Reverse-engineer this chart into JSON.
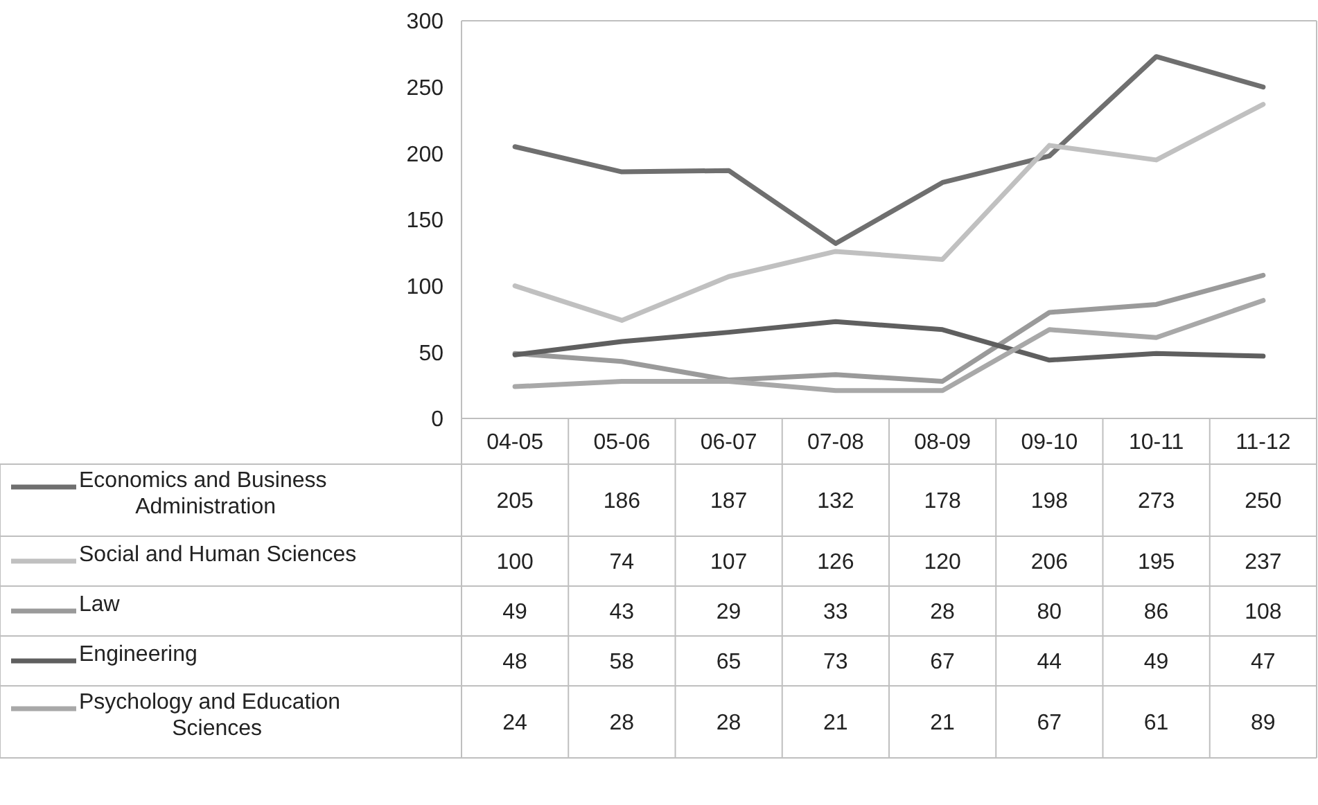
{
  "chart_data": {
    "type": "line",
    "categories": [
      "04-05",
      "05-06",
      "06-07",
      "07-08",
      "08-09",
      "09-10",
      "10-11",
      "11-12"
    ],
    "series": [
      {
        "name": "Economics and Business Administration",
        "color": "#6f6f6f",
        "values": [
          205,
          186,
          187,
          132,
          178,
          198,
          273,
          250
        ]
      },
      {
        "name": "Social and Human Sciences",
        "color": "#c0c0c0",
        "values": [
          100,
          74,
          107,
          126,
          120,
          206,
          195,
          237
        ]
      },
      {
        "name": "Law",
        "color": "#9a9a9a",
        "values": [
          49,
          43,
          29,
          33,
          28,
          80,
          86,
          108
        ]
      },
      {
        "name": "Engineering",
        "color": "#5f5f5f",
        "values": [
          48,
          58,
          65,
          73,
          67,
          44,
          49,
          47
        ]
      },
      {
        "name": "Psychology and Education Sciences",
        "color": "#a8a8a8",
        "values": [
          24,
          28,
          28,
          21,
          21,
          67,
          61,
          89
        ]
      }
    ],
    "ylim": [
      0,
      300
    ],
    "yticks": [
      0,
      50,
      100,
      150,
      200,
      250,
      300
    ],
    "grid": false,
    "legend": "bottom",
    "data_labels": true,
    "marker": "none",
    "line_style": "solid"
  }
}
